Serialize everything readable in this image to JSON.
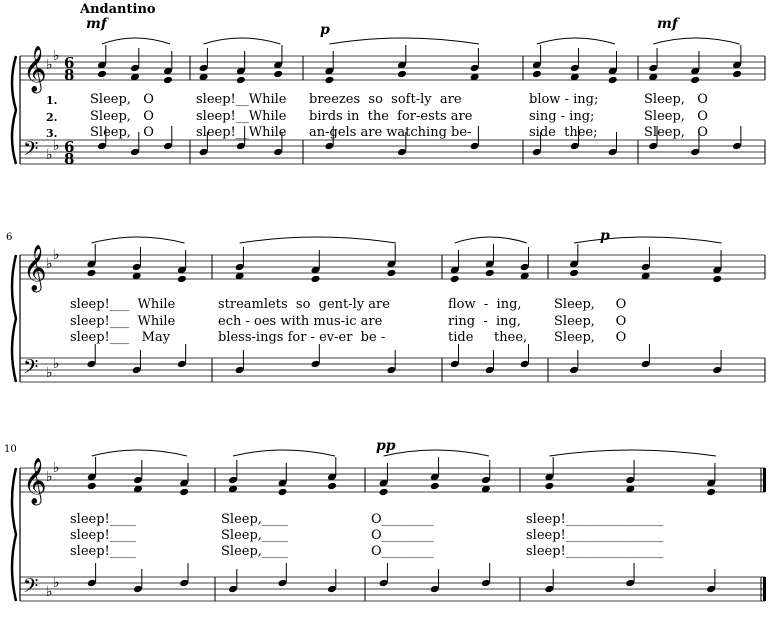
{
  "score": {
    "tempo": "Andantino",
    "time_signature": {
      "numerator": "6",
      "denominator": "8"
    },
    "key": "B-flat major",
    "measure_numbers": [
      "6",
      "10"
    ],
    "dynamics": {
      "s1a": "mf",
      "s1b": "p",
      "s1c": "mf",
      "s2a": "p",
      "s3a": "pp"
    },
    "systems": [
      {
        "verses": [
          {
            "number": "1.",
            "measures": [
              "Sleep,   O",
              "sleep!__While",
              "breezes  so  soft-ly  are",
              "blow - ing;",
              "Sleep,   O"
            ]
          },
          {
            "number": "2.",
            "measures": [
              "Sleep,   O",
              "sleep!__While",
              "birds in  the  for-ests are",
              "sing - ing;",
              "Sleep,   O"
            ]
          },
          {
            "number": "3.",
            "measures": [
              "Sleep,   O",
              "sleep!__While",
              "an-gels are watching be-",
              "side  thee;",
              "Sleep,   O"
            ]
          }
        ]
      },
      {
        "verses": [
          {
            "measures": [
              "sleep!___  While",
              "streamlets  so  gent-ly are",
              "flow  -  ing,",
              "Sleep,     O"
            ]
          },
          {
            "measures": [
              "sleep!___  While",
              "ech - oes with mus-ic are",
              "ring  -  ing,",
              "Sleep,     O"
            ]
          },
          {
            "measures": [
              "sleep!___   May",
              "bless-ings for - ev-er  be -",
              "tide     thee,",
              "Sleep,     O"
            ]
          }
        ]
      },
      {
        "verses": [
          {
            "measures": [
              "sleep!____",
              "Sleep,____",
              "O________",
              "sleep!_______________"
            ]
          },
          {
            "measures": [
              "sleep!____",
              "Sleep,____",
              "O________",
              "sleep!_______________"
            ]
          },
          {
            "measures": [
              "sleep!____",
              "Sleep,____",
              "O________",
              "sleep!_______________"
            ]
          }
        ]
      }
    ]
  }
}
